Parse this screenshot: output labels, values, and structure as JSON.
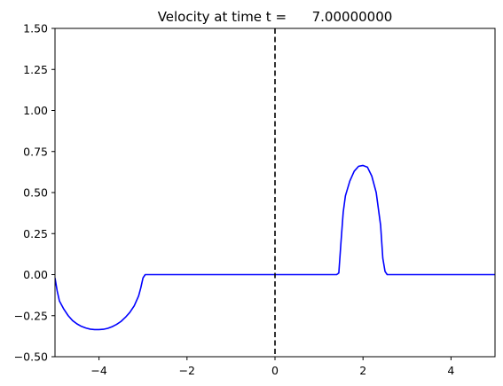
{
  "chart_data": {
    "type": "line",
    "title": "Velocity at time t =      7.00000000",
    "xlabel": "",
    "ylabel": "",
    "xlim": [
      -5,
      5
    ],
    "ylim": [
      -0.5,
      1.5
    ],
    "xticks": [
      -4,
      -2,
      0,
      2,
      4
    ],
    "xtick_labels": [
      "−4",
      "−2",
      "0",
      "2",
      "4"
    ],
    "yticks": [
      -0.5,
      -0.25,
      0,
      0.25,
      0.5,
      0.75,
      1.0,
      1.25,
      1.5
    ],
    "ytick_labels": [
      "−0.50",
      "−0.25",
      "0.00",
      "0.25",
      "0.50",
      "0.75",
      "1.00",
      "1.25",
      "1.50"
    ],
    "grid": false,
    "series": [
      {
        "color": "#0000ff",
        "x": [
          -5.0,
          -4.95,
          -4.9,
          -4.8,
          -4.7,
          -4.6,
          -4.5,
          -4.4,
          -4.3,
          -4.2,
          -4.1,
          -4.0,
          -3.9,
          -3.8,
          -3.7,
          -3.6,
          -3.5,
          -3.4,
          -3.3,
          -3.2,
          -3.1,
          -3.05,
          -3.0,
          -2.95,
          -2.9,
          1.4,
          1.45,
          1.5,
          1.55,
          1.6,
          1.7,
          1.8,
          1.9,
          2.0,
          2.1,
          2.2,
          2.3,
          2.4,
          2.45,
          2.5,
          2.55,
          2.6,
          5.0
        ],
        "y": [
          -0.02,
          -0.1,
          -0.16,
          -0.21,
          -0.25,
          -0.28,
          -0.3,
          -0.315,
          -0.325,
          -0.332,
          -0.335,
          -0.335,
          -0.333,
          -0.327,
          -0.317,
          -0.303,
          -0.285,
          -0.26,
          -0.23,
          -0.19,
          -0.13,
          -0.08,
          -0.02,
          0.0,
          0.0,
          0.0,
          0.01,
          0.2,
          0.38,
          0.48,
          0.57,
          0.63,
          0.66,
          0.665,
          0.655,
          0.6,
          0.5,
          0.3,
          0.1,
          0.02,
          0.0,
          0.0,
          0.0
        ]
      }
    ],
    "vline": {
      "x": 0,
      "color": "#000000",
      "style": "dashed"
    }
  }
}
